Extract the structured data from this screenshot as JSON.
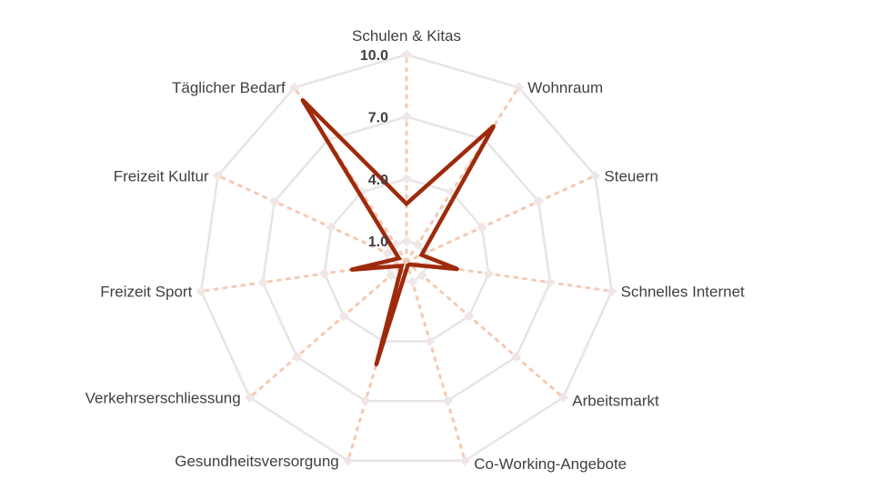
{
  "chart_data": {
    "type": "radar",
    "title": "",
    "categories": [
      "Schulen & Kitas",
      "Wohnraum",
      "Steuern",
      "Schnelles Internet",
      "Arbeitsmarkt",
      "Co-Working-Angebote",
      "Gesundheitsversorgung",
      "Verkehrserschliessung",
      "Freizeit Sport",
      "Freizeit Kultur",
      "Täglicher Bedarf"
    ],
    "ticks": [
      {
        "value": 1,
        "label": "1.0"
      },
      {
        "value": 4,
        "label": "4.0"
      },
      {
        "value": 7,
        "label": "7.0"
      },
      {
        "value": 10,
        "label": "10.0"
      }
    ],
    "rlim": [
      0,
      10
    ],
    "grid_levels": [
      1,
      4,
      7,
      10
    ],
    "legend": "none",
    "series": [
      {
        "style": "solid",
        "color": "#9e2a0c",
        "values": [
          2.8,
          7.8,
          0.8,
          2.5,
          0.2,
          0.2,
          5.2,
          0.3,
          2.7,
          0.4,
          9.3
        ]
      },
      {
        "style": "dotted",
        "color": "#f5c9b3",
        "values": [
          10,
          10,
          10,
          10,
          10,
          10,
          10,
          10,
          10,
          10,
          10
        ]
      }
    ],
    "colors": {
      "grid": "#e8e4e4",
      "series_main": "#9e2a0c",
      "series_dotted": "#f5c9b3",
      "text": "#404040"
    }
  }
}
